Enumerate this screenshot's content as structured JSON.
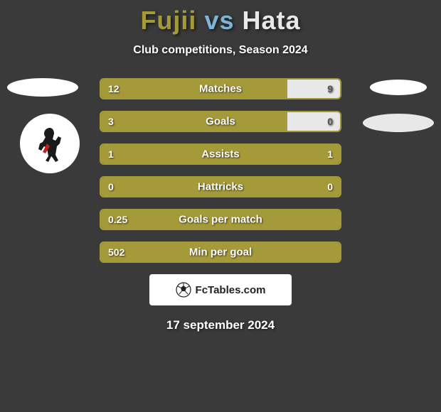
{
  "header": {
    "player1": "Fujii",
    "vs": "vs",
    "player2": "Hata",
    "subtitle": "Club competitions, Season 2024"
  },
  "colors": {
    "player1": "#a59a3a",
    "player2": "#e8e8e8",
    "bar_border": "#a59a3a",
    "bar_bg": "#3a3a3a",
    "background": "#3a3a3a"
  },
  "bars": [
    {
      "label": "Matches",
      "left_val": "12",
      "right_val": "9",
      "left_pct": 78,
      "right_pct": 22,
      "right_fill": "#e8e8e8"
    },
    {
      "label": "Goals",
      "left_val": "3",
      "right_val": "0",
      "left_pct": 78,
      "right_pct": 22,
      "right_fill": "#e8e8e8"
    },
    {
      "label": "Assists",
      "left_val": "1",
      "right_val": "1",
      "left_pct": 100,
      "right_pct": 0,
      "right_fill": "#e8e8e8"
    },
    {
      "label": "Hattricks",
      "left_val": "0",
      "right_val": "0",
      "left_pct": 100,
      "right_pct": 0,
      "right_fill": "#e8e8e8"
    },
    {
      "label": "Goals per match",
      "left_val": "0.25",
      "right_val": "",
      "left_pct": 100,
      "right_pct": 0,
      "right_fill": "#e8e8e8"
    },
    {
      "label": "Min per goal",
      "left_val": "502",
      "right_val": "",
      "left_pct": 100,
      "right_pct": 0,
      "right_fill": "#e8e8e8"
    }
  ],
  "footer": {
    "brand": "FcTables.com",
    "date": "17 september 2024"
  }
}
